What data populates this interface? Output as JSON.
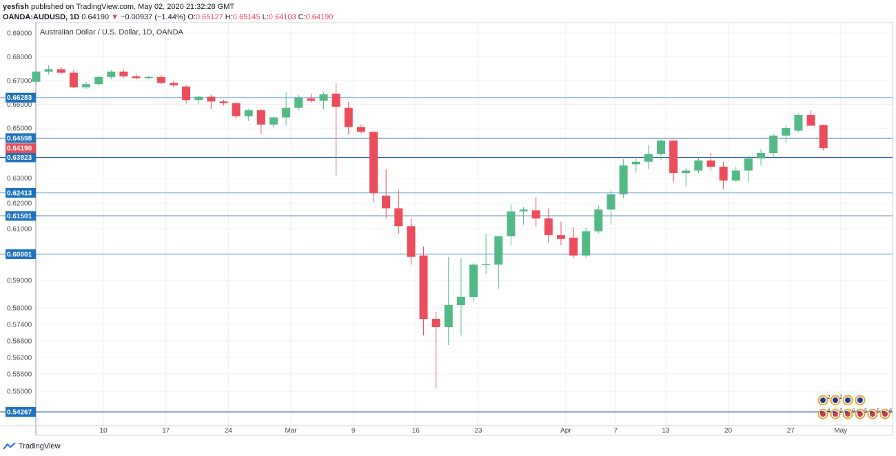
{
  "header": {
    "author": "yesfish",
    "published_text": "published on TradingView.com, May 02, 2020 21:32:28 GMT",
    "symbol": "OANDA:AUDUSD, 1D",
    "last": "0.64190",
    "change_arrow": "▼",
    "change": "−0.00937 (−1.44%)",
    "o_label": "O:",
    "o_value": "0.65127",
    "h_label": "H:",
    "h_value": "0.65145",
    "l_label": "L:",
    "l_value": "0.64103",
    "c_label": "C:",
    "c_value": "0.64190"
  },
  "footer": {
    "brand": "TradingView",
    "logo_icon": "tradingview-logo-icon"
  },
  "colors": {
    "up": "#53b987",
    "down": "#eb4d5c",
    "hline_dark": "#1e5799",
    "hline_light": "#6fa8dc",
    "label_bg": "#1e73be",
    "price_tag": "#eb4d5c"
  },
  "chart_data": {
    "type": "candlestick",
    "title": "Australian Dollar / U.S. Dollar, 1D, OANDA",
    "y_axis_side": "left",
    "ylim": [
      0.5395,
      0.6935
    ],
    "y_ticks": [
      0.69,
      0.68,
      0.67,
      0.66,
      0.65,
      0.63,
      0.62,
      0.61,
      0.6,
      0.59,
      0.58,
      0.574,
      0.568,
      0.562,
      0.556,
      0.55
    ],
    "x_ticks": [
      {
        "label": "10",
        "i": 4
      },
      {
        "label": "17",
        "i": 9
      },
      {
        "label": "24",
        "i": 14
      },
      {
        "label": "Mar",
        "i": 19
      },
      {
        "label": "9",
        "i": 24
      },
      {
        "label": "16",
        "i": 29
      },
      {
        "label": "23",
        "i": 34
      },
      {
        "label": "Apr",
        "i": 41
      },
      {
        "label": "7",
        "i": 45
      },
      {
        "label": "13",
        "i": 49
      },
      {
        "label": "20",
        "i": 54
      },
      {
        "label": "27",
        "i": 59
      },
      {
        "label": "May",
        "i": 63
      }
    ],
    "candles": [
      {
        "o": 0.6695,
        "h": 0.6745,
        "l": 0.6685,
        "c": 0.6738
      },
      {
        "o": 0.6738,
        "h": 0.6765,
        "l": 0.6725,
        "c": 0.6748
      },
      {
        "o": 0.6748,
        "h": 0.6758,
        "l": 0.6728,
        "c": 0.6733
      },
      {
        "o": 0.6733,
        "h": 0.6745,
        "l": 0.6668,
        "c": 0.6672
      },
      {
        "o": 0.6672,
        "h": 0.6695,
        "l": 0.6665,
        "c": 0.6685
      },
      {
        "o": 0.6685,
        "h": 0.672,
        "l": 0.6678,
        "c": 0.6715
      },
      {
        "o": 0.6715,
        "h": 0.6745,
        "l": 0.6705,
        "c": 0.6738
      },
      {
        "o": 0.6738,
        "h": 0.6745,
        "l": 0.6712,
        "c": 0.6718
      },
      {
        "o": 0.6718,
        "h": 0.6728,
        "l": 0.6705,
        "c": 0.671
      },
      {
        "o": 0.6712,
        "h": 0.672,
        "l": 0.6705,
        "c": 0.6715
      },
      {
        "o": 0.6715,
        "h": 0.6722,
        "l": 0.6685,
        "c": 0.669
      },
      {
        "o": 0.669,
        "h": 0.67,
        "l": 0.6672,
        "c": 0.668
      },
      {
        "o": 0.6675,
        "h": 0.668,
        "l": 0.6605,
        "c": 0.6618
      },
      {
        "o": 0.6618,
        "h": 0.6635,
        "l": 0.66,
        "c": 0.6632
      },
      {
        "o": 0.6632,
        "h": 0.664,
        "l": 0.658,
        "c": 0.6612
      },
      {
        "o": 0.6612,
        "h": 0.662,
        "l": 0.6595,
        "c": 0.6605
      },
      {
        "o": 0.6605,
        "h": 0.661,
        "l": 0.654,
        "c": 0.655
      },
      {
        "o": 0.655,
        "h": 0.658,
        "l": 0.653,
        "c": 0.6575
      },
      {
        "o": 0.6575,
        "h": 0.658,
        "l": 0.6475,
        "c": 0.6515
      },
      {
        "o": 0.6515,
        "h": 0.655,
        "l": 0.6505,
        "c": 0.6545
      },
      {
        "o": 0.6545,
        "h": 0.665,
        "l": 0.651,
        "c": 0.6585
      },
      {
        "o": 0.6585,
        "h": 0.664,
        "l": 0.6575,
        "c": 0.6628
      },
      {
        "o": 0.6625,
        "h": 0.6645,
        "l": 0.6608,
        "c": 0.6615
      },
      {
        "o": 0.6615,
        "h": 0.665,
        "l": 0.658,
        "c": 0.6642
      },
      {
        "o": 0.6645,
        "h": 0.669,
        "l": 0.631,
        "c": 0.659
      },
      {
        "o": 0.6585,
        "h": 0.661,
        "l": 0.6475,
        "c": 0.6505
      },
      {
        "o": 0.6505,
        "h": 0.6515,
        "l": 0.6478,
        "c": 0.6485
      },
      {
        "o": 0.6485,
        "h": 0.6485,
        "l": 0.6205,
        "c": 0.624
      },
      {
        "o": 0.623,
        "h": 0.6335,
        "l": 0.614,
        "c": 0.618
      },
      {
        "o": 0.618,
        "h": 0.6255,
        "l": 0.608,
        "c": 0.611
      },
      {
        "o": 0.611,
        "h": 0.614,
        "l": 0.596,
        "c": 0.599
      },
      {
        "o": 0.5995,
        "h": 0.603,
        "l": 0.57,
        "c": 0.576
      },
      {
        "o": 0.576,
        "h": 0.5785,
        "l": 0.551,
        "c": 0.573
      },
      {
        "o": 0.573,
        "h": 0.599,
        "l": 0.5665,
        "c": 0.581
      },
      {
        "o": 0.581,
        "h": 0.5985,
        "l": 0.57,
        "c": 0.584
      },
      {
        "o": 0.584,
        "h": 0.5965,
        "l": 0.5825,
        "c": 0.596
      },
      {
        "o": 0.596,
        "h": 0.608,
        "l": 0.5925,
        "c": 0.5962
      },
      {
        "o": 0.596,
        "h": 0.607,
        "l": 0.587,
        "c": 0.607
      },
      {
        "o": 0.607,
        "h": 0.6195,
        "l": 0.6035,
        "c": 0.6168
      },
      {
        "o": 0.6168,
        "h": 0.6185,
        "l": 0.6115,
        "c": 0.6175
      },
      {
        "o": 0.6172,
        "h": 0.6225,
        "l": 0.6108,
        "c": 0.614
      },
      {
        "o": 0.614,
        "h": 0.618,
        "l": 0.6045,
        "c": 0.6075
      },
      {
        "o": 0.6075,
        "h": 0.6128,
        "l": 0.6035,
        "c": 0.606
      },
      {
        "o": 0.6065,
        "h": 0.6105,
        "l": 0.5985,
        "c": 0.5995
      },
      {
        "o": 0.5995,
        "h": 0.6105,
        "l": 0.5985,
        "c": 0.609
      },
      {
        "o": 0.609,
        "h": 0.619,
        "l": 0.6083,
        "c": 0.6175
      },
      {
        "o": 0.6175,
        "h": 0.6255,
        "l": 0.6115,
        "c": 0.6235
      },
      {
        "o": 0.6235,
        "h": 0.6375,
        "l": 0.622,
        "c": 0.635
      },
      {
        "o": 0.6355,
        "h": 0.6385,
        "l": 0.6322,
        "c": 0.6365
      },
      {
        "o": 0.6365,
        "h": 0.6432,
        "l": 0.6335,
        "c": 0.6395
      },
      {
        "o": 0.6395,
        "h": 0.6455,
        "l": 0.6372,
        "c": 0.645
      },
      {
        "o": 0.645,
        "h": 0.645,
        "l": 0.6285,
        "c": 0.632
      },
      {
        "o": 0.632,
        "h": 0.634,
        "l": 0.6265,
        "c": 0.633
      },
      {
        "o": 0.633,
        "h": 0.6382,
        "l": 0.632,
        "c": 0.637
      },
      {
        "o": 0.637,
        "h": 0.64,
        "l": 0.6328,
        "c": 0.6345
      },
      {
        "o": 0.6345,
        "h": 0.6365,
        "l": 0.6255,
        "c": 0.629
      },
      {
        "o": 0.629,
        "h": 0.6345,
        "l": 0.6285,
        "c": 0.633
      },
      {
        "o": 0.633,
        "h": 0.639,
        "l": 0.6285,
        "c": 0.6378
      },
      {
        "o": 0.6378,
        "h": 0.6415,
        "l": 0.635,
        "c": 0.64
      },
      {
        "o": 0.64,
        "h": 0.6475,
        "l": 0.6385,
        "c": 0.647
      },
      {
        "o": 0.647,
        "h": 0.651,
        "l": 0.644,
        "c": 0.65
      },
      {
        "o": 0.649,
        "h": 0.656,
        "l": 0.6485,
        "c": 0.6555
      },
      {
        "o": 0.6555,
        "h": 0.6575,
        "l": 0.6515,
        "c": 0.651
      },
      {
        "o": 0.6513,
        "h": 0.6515,
        "l": 0.641,
        "c": 0.6419
      }
    ],
    "horizontal_lines": [
      {
        "value": 0.66283,
        "label": "0.66283",
        "style": "light"
      },
      {
        "value": 0.64598,
        "label": "0.64598",
        "style": "dark"
      },
      {
        "value": 0.63823,
        "label": "0.63823",
        "style": "dark"
      },
      {
        "value": 0.62413,
        "label": "0.62413",
        "style": "light"
      },
      {
        "value": 0.61501,
        "label": "0.61501",
        "style": "dark"
      },
      {
        "value": 0.60001,
        "label": "0.60001",
        "style": "light"
      },
      {
        "value": 0.54267,
        "label": "0.54267",
        "style": "dark"
      }
    ],
    "last_price": {
      "value": 0.6419,
      "label": "0.64190"
    },
    "event_markers": {
      "top_row": [
        {
          "count": "2",
          "flag": "au"
        },
        {
          "count": "2",
          "flag": "au"
        },
        {
          "count": "",
          "flag": "au"
        },
        {
          "count": "",
          "flag": "au"
        }
      ],
      "bottom_row": [
        {
          "count": "4",
          "flag": "us"
        },
        {
          "count": "2",
          "flag": "us"
        },
        {
          "count": "6",
          "flag": "us"
        },
        {
          "count": "5",
          "flag": "us"
        },
        {
          "count": "5",
          "flag": "us"
        },
        {
          "count": "6",
          "flag": "us"
        }
      ]
    }
  }
}
